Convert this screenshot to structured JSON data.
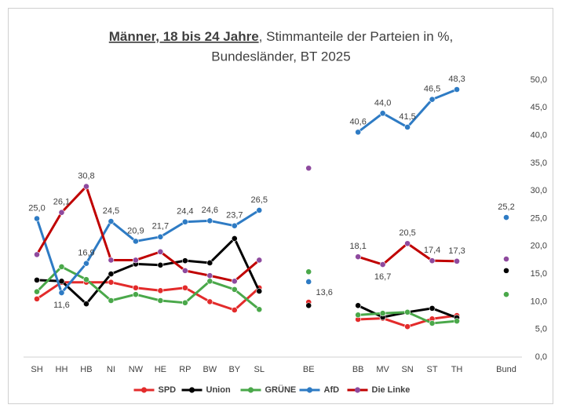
{
  "chart_data": {
    "type": "line",
    "title": [
      "Männer, 18 bis 24 Jahre",
      ", Stimmanteile der Parteien in %,",
      "Bundesländer, BT 2025"
    ],
    "categories": [
      "SH",
      "HH",
      "HB",
      "NI",
      "NW",
      "HE",
      "RP",
      "BW",
      "BY",
      "SL",
      null,
      "BE",
      null,
      "BB",
      "MV",
      "SN",
      "ST",
      "TH",
      null,
      "Bund"
    ],
    "series": [
      {
        "name": "SPD",
        "color": "#e32b2b",
        "values": [
          10.5,
          13.5,
          13.5,
          13.5,
          12.5,
          12.0,
          12.5,
          10.0,
          8.5,
          12.5,
          null,
          9.9,
          null,
          6.8,
          7.0,
          5.5,
          6.9,
          7.5,
          null,
          null
        ]
      },
      {
        "name": "Union",
        "color": "#000000",
        "values": [
          13.9,
          13.7,
          9.6,
          15.0,
          16.8,
          16.6,
          17.4,
          17.0,
          21.4,
          11.9,
          null,
          9.3,
          null,
          9.3,
          7.2,
          8.1,
          8.8,
          7.1,
          null,
          15.6
        ]
      },
      {
        "name": "GRÜNE",
        "color": "#4aa84a",
        "values": [
          11.8,
          16.3,
          14.0,
          10.2,
          11.3,
          10.2,
          9.8,
          13.7,
          12.2,
          8.6,
          null,
          15.4,
          null,
          7.6,
          7.9,
          8.1,
          6.1,
          6.5,
          null,
          11.3
        ]
      },
      {
        "name": "AfD",
        "color": "#2e7bc4",
        "values": [
          25.0,
          11.6,
          16.9,
          24.5,
          20.9,
          21.7,
          24.4,
          24.6,
          23.7,
          26.5,
          null,
          13.6,
          null,
          40.6,
          44.0,
          41.5,
          46.5,
          48.3,
          null,
          25.2
        ],
        "value_labels": [
          "25,0",
          "11,6",
          "16,9",
          "24,5",
          "20,9",
          "21,7",
          "24,4",
          "24,6",
          "23,7",
          "26,5",
          null,
          "13,6",
          null,
          "40,6",
          "44,0",
          "41,5",
          "46,5",
          "48,3",
          null,
          "25,2"
        ]
      },
      {
        "name": "Die Linke",
        "color": "#c00000",
        "marker_color": "#8e4a9e",
        "values": [
          18.5,
          26.1,
          30.8,
          17.5,
          17.5,
          19.0,
          15.6,
          14.7,
          13.7,
          17.5,
          null,
          34.1,
          null,
          18.1,
          16.7,
          20.5,
          17.4,
          17.3,
          null,
          17.7
        ],
        "value_labels": [
          null,
          "26,1",
          "30,8",
          null,
          null,
          null,
          null,
          null,
          null,
          null,
          null,
          null,
          null,
          "18,1",
          "16,7",
          "20,5",
          "17,4",
          "17,3",
          null,
          null
        ]
      }
    ],
    "ylim": [
      0,
      50
    ],
    "yticks": [
      {
        "value": 0,
        "label": "0,0"
      },
      {
        "value": 5,
        "label": "5,0"
      },
      {
        "value": 10,
        "label": "10,0"
      },
      {
        "value": 15,
        "label": "15,0"
      },
      {
        "value": 20,
        "label": "20,0"
      },
      {
        "value": 25,
        "label": "25,0"
      },
      {
        "value": 30,
        "label": "30,0"
      },
      {
        "value": 35,
        "label": "35,0"
      },
      {
        "value": 40,
        "label": "40,0"
      },
      {
        "value": 45,
        "label": "45,0"
      },
      {
        "value": 50,
        "label": "50,0"
      }
    ],
    "grid": false,
    "legend": "bottom"
  }
}
